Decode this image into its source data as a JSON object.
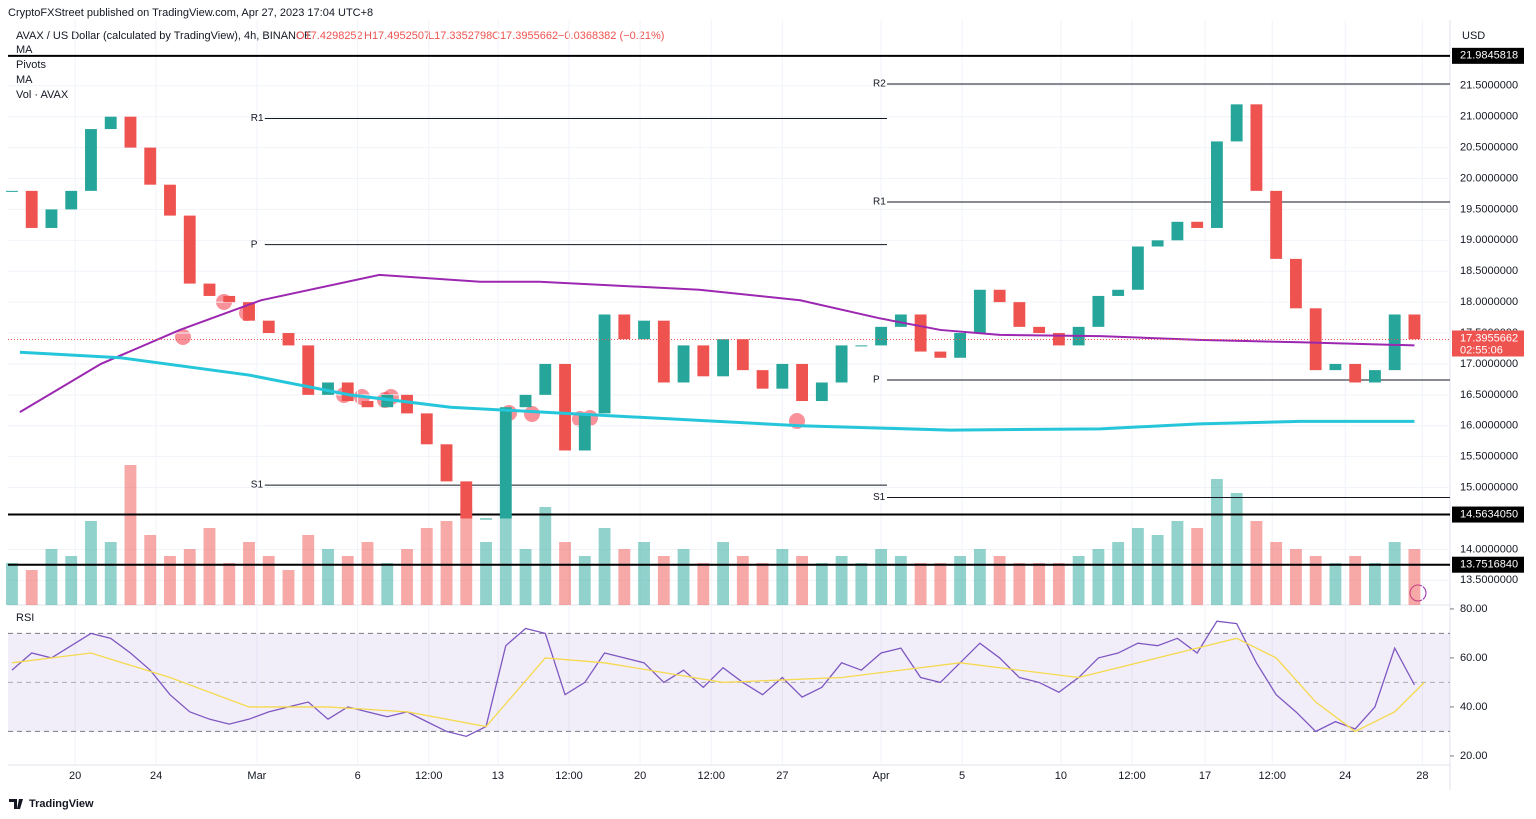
{
  "header": {
    "published": "CryptoFXStreet published on TradingView.com, Apr 27, 2023 17:04 UTC+8",
    "symbol": "AVAX / US Dollar (calculated by TradingView), 4h, BINANCE",
    "ohlc": [
      "O17.4298252",
      "H17.4952507",
      "L17.3352798",
      "C17.3955662",
      "−0.0368382 (−0.21%)"
    ],
    "indicators": [
      "MA",
      "Pivots",
      "MA",
      "Vol · AVAX"
    ],
    "currency": "USD",
    "logo": "TradingView"
  },
  "chart_data": [
    {
      "type": "candlestick",
      "xlim": [
        -0.2,
        72.8
      ],
      "xticks": [
        {
          "value": 3.2,
          "label": "20"
        },
        {
          "value": 7.3,
          "label": "24"
        },
        {
          "value": 12.4,
          "label": "Mar"
        },
        {
          "value": 17.5,
          "label": "6"
        },
        {
          "value": 21.1,
          "label": "12:00"
        },
        {
          "value": 24.6,
          "label": "13"
        },
        {
          "value": 28.2,
          "label": "12:00"
        },
        {
          "value": 31.8,
          "label": "20"
        },
        {
          "value": 35.4,
          "label": "12:00"
        },
        {
          "value": 39,
          "label": "27"
        },
        {
          "value": 44,
          "label": "Apr"
        },
        {
          "value": 48.1,
          "label": "5"
        },
        {
          "value": 53.1,
          "label": "10"
        },
        {
          "value": 56.7,
          "label": "12:00"
        },
        {
          "value": 60.4,
          "label": "17"
        },
        {
          "value": 63.8,
          "label": "12:00"
        },
        {
          "value": 67.5,
          "label": "24"
        },
        {
          "value": 71.4,
          "label": "28"
        }
      ],
      "ylim": [
        13.1,
        22.16
      ],
      "yticks": [
        {
          "value": 13.5,
          "label": "13.5000000"
        },
        {
          "value": 14,
          "label": "14.0000000"
        },
        {
          "value": 15,
          "label": "15.0000000"
        },
        {
          "value": 15.5,
          "label": "15.5000000"
        },
        {
          "value": 16,
          "label": "16.0000000"
        },
        {
          "value": 16.5,
          "label": "16.5000000"
        },
        {
          "value": 17,
          "label": "17.0000000"
        },
        {
          "value": 17.5,
          "label": "17.5000000"
        },
        {
          "value": 18,
          "label": "18.0000000"
        },
        {
          "value": 18.5,
          "label": "18.5000000"
        },
        {
          "value": 19,
          "label": "19.0000000"
        },
        {
          "value": 19.5,
          "label": "19.5000000"
        },
        {
          "value": 20,
          "label": "20.0000000"
        },
        {
          "value": 20.5,
          "label": "20.5000000"
        },
        {
          "value": 21,
          "label": "21.0000000"
        },
        {
          "value": 21.5,
          "label": "21.5000000"
        }
      ],
      "close": [
        19.8,
        19.2,
        19.5,
        19.8,
        20.8,
        21.0,
        20.5,
        19.9,
        19.4,
        18.3,
        18.1,
        18.0,
        17.7,
        17.5,
        17.3,
        16.5,
        16.7,
        16.4,
        16.3,
        16.5,
        16.2,
        15.7,
        15.1,
        14.5,
        14.5,
        16.3,
        16.5,
        17.0,
        15.6,
        16.2,
        17.8,
        17.4,
        17.7,
        16.7,
        17.3,
        16.8,
        17.4,
        16.9,
        16.6,
        17.0,
        16.4,
        16.7,
        17.3,
        17.3,
        17.6,
        17.8,
        17.2,
        17.1,
        17.5,
        18.2,
        18.0,
        17.6,
        17.5,
        17.3,
        17.6,
        18.1,
        18.2,
        18.9,
        19.0,
        19.3,
        19.2,
        20.6,
        21.2,
        19.8,
        18.7,
        17.9,
        16.9,
        17.0,
        16.7,
        16.9,
        17.8,
        17.4
      ],
      "volume": [
        30,
        25,
        40,
        35,
        60,
        45,
        100,
        50,
        35,
        40,
        55,
        30,
        45,
        35,
        25,
        50,
        40,
        35,
        45,
        30,
        40,
        55,
        60,
        70,
        45,
        65,
        40,
        70,
        45,
        35,
        55,
        40,
        45,
        35,
        40,
        30,
        45,
        35,
        30,
        40,
        35,
        30,
        35,
        30,
        40,
        35,
        30,
        30,
        35,
        40,
        35,
        30,
        30,
        30,
        35,
        40,
        45,
        55,
        50,
        60,
        55,
        90,
        80,
        60,
        45,
        40,
        35,
        30,
        35,
        30,
        45,
        40
      ],
      "series": [
        {
          "name": "MA",
          "color": "#9c27b0",
          "x": [
            0.4,
            4.5,
            8.5,
            12.6,
            18.6,
            23.7,
            26.7,
            34.8,
            39.9,
            43.9,
            47,
            50,
            55.1,
            60.1,
            65.2,
            71
          ],
          "values": [
            16.22,
            17.0,
            17.55,
            18.03,
            18.44,
            18.33,
            18.33,
            18.2,
            18.03,
            17.74,
            17.55,
            17.47,
            17.45,
            17.39,
            17.35,
            17.3
          ]
        },
        {
          "name": "MA",
          "color": "#26c6da",
          "x": [
            0.4,
            5.5,
            12,
            17.1,
            22.2,
            29.8,
            39.9,
            47.5,
            55.1,
            60.1,
            65.2,
            71
          ],
          "values": [
            17.19,
            17.1,
            16.82,
            16.5,
            16.3,
            16.17,
            16.0,
            15.93,
            15.95,
            16.03,
            16.07,
            16.07
          ]
        }
      ],
      "levels": [
        21.9845818,
        {
          "value": 14.563405,
          "label": "14.5634050"
        },
        {
          "value": 13.751684,
          "label": "13.7516840"
        }
      ],
      "current": 17.3955662,
      "countdown": "02:55:06",
      "pivots": [
        {
          "xrange": [
            12.8,
            44.3
          ],
          "levels": [
            {
              "name": "R1",
              "value": 20.97
            },
            {
              "name": "P",
              "value": 18.93
            },
            {
              "name": "S1",
              "value": 15.04
            }
          ]
        },
        {
          "xrange": [
            44.3,
            72.8
          ],
          "levels": [
            {
              "name": "R2",
              "value": 21.53
            },
            {
              "name": "R1",
              "value": 19.62
            },
            {
              "name": "P",
              "value": 16.74
            },
            {
              "name": "S1",
              "value": 14.84
            }
          ]
        }
      ]
    },
    {
      "type": "line",
      "title": "RSI",
      "ylim": [
        16.3,
        81.6
      ],
      "yticks": [
        {
          "value": 20,
          "label": "20.00"
        },
        {
          "value": 40,
          "label": "40.00"
        },
        {
          "value": 60,
          "label": "60.00"
        },
        {
          "value": 80,
          "label": "80.00"
        }
      ],
      "band": [
        30,
        70
      ],
      "midline": 50,
      "series": [
        {
          "color": "#7e57c2",
          "values": [
            55,
            62,
            60,
            65,
            70,
            68,
            62,
            55,
            45,
            38,
            35,
            33,
            35,
            38,
            40,
            42,
            35,
            40,
            38,
            36,
            38,
            34,
            30,
            28,
            32,
            65,
            72,
            70,
            45,
            50,
            62,
            60,
            58,
            50,
            55,
            48,
            56,
            50,
            45,
            52,
            44,
            48,
            58,
            55,
            62,
            64,
            52,
            50,
            58,
            66,
            60,
            52,
            50,
            46,
            52,
            60,
            62,
            66,
            65,
            68,
            62,
            75,
            74,
            58,
            45,
            38,
            30,
            34,
            31,
            40,
            64,
            49
          ]
        },
        {
          "color": "#f5d94e",
          "x": [
            0,
            4,
            8,
            12,
            16,
            20,
            24,
            27,
            30,
            36,
            42,
            48,
            54,
            58,
            62,
            64,
            66,
            68,
            70,
            71.5
          ],
          "values": [
            58,
            62,
            52,
            40,
            40,
            38,
            32,
            60,
            58,
            50,
            52,
            58,
            52,
            60,
            68,
            60,
            42,
            30,
            38,
            50
          ]
        }
      ]
    }
  ]
}
